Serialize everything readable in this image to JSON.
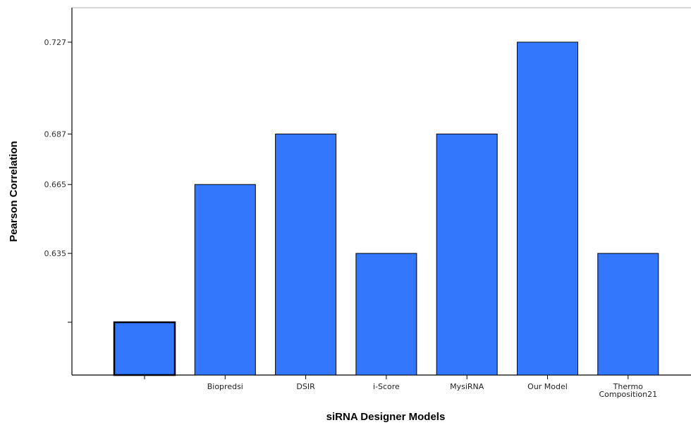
{
  "chart_data": {
    "type": "bar",
    "title": "",
    "xlabel": "siRNA Designer Models",
    "ylabel": "Pearson Correlation",
    "categories": [
      "",
      "Biopredsi",
      "DSIR",
      "i-Score",
      "MysiRNA",
      "Our Model",
      "Thermo Composition21"
    ],
    "category_lines": [
      [
        ""
      ],
      [
        "Biopredsi"
      ],
      [
        "DSIR"
      ],
      [
        "i-Score"
      ],
      [
        "MysiRNA"
      ],
      [
        "Our Model"
      ],
      [
        "Thermo",
        "Composition21"
      ]
    ],
    "values": [
      0.605,
      0.665,
      0.687,
      0.635,
      0.687,
      0.727,
      0.635
    ],
    "yticks": [
      0.605,
      0.635,
      0.665,
      0.687,
      0.727
    ],
    "ytick_labels": [
      "",
      "0.635",
      "0.665",
      "0.687",
      "0.727"
    ],
    "ylim": [
      0.582,
      0.742
    ],
    "bar_color": "#3377ff",
    "highlight_bar_index": 0,
    "grid": false,
    "legend": "none"
  }
}
